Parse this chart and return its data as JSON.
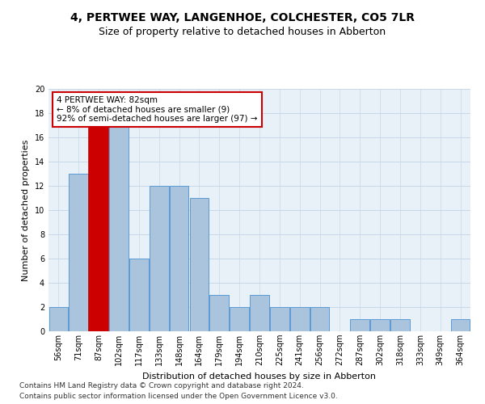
{
  "title1": "4, PERTWEE WAY, LANGENHOE, COLCHESTER, CO5 7LR",
  "title2": "Size of property relative to detached houses in Abberton",
  "xlabel": "Distribution of detached houses by size in Abberton",
  "ylabel": "Number of detached properties",
  "bar_labels": [
    "56sqm",
    "71sqm",
    "87sqm",
    "102sqm",
    "117sqm",
    "133sqm",
    "148sqm",
    "164sqm",
    "179sqm",
    "194sqm",
    "210sqm",
    "225sqm",
    "241sqm",
    "256sqm",
    "272sqm",
    "287sqm",
    "302sqm",
    "318sqm",
    "333sqm",
    "349sqm",
    "364sqm"
  ],
  "bar_values": [
    2,
    13,
    17,
    17,
    6,
    12,
    12,
    11,
    3,
    2,
    3,
    2,
    2,
    2,
    0,
    1,
    1,
    1,
    0,
    0,
    1
  ],
  "bar_color": "#aac4de",
  "bar_edge_color": "#5b9bd5",
  "highlight_index": 2,
  "highlight_color": "#cc0000",
  "highlight_edge_color": "#cc0000",
  "annotation_text": "4 PERTWEE WAY: 82sqm\n← 8% of detached houses are smaller (9)\n92% of semi-detached houses are larger (97) →",
  "annotation_box_color": "#ffffff",
  "annotation_box_edge": "#cc0000",
  "ylim": [
    0,
    20
  ],
  "yticks": [
    0,
    2,
    4,
    6,
    8,
    10,
    12,
    14,
    16,
    18,
    20
  ],
  "footer1": "Contains HM Land Registry data © Crown copyright and database right 2024.",
  "footer2": "Contains public sector information licensed under the Open Government Licence v3.0.",
  "bg_color": "#ffffff",
  "grid_color": "#c8d8e8",
  "title1_fontsize": 10,
  "title2_fontsize": 9,
  "axis_label_fontsize": 8,
  "tick_fontsize": 7,
  "annotation_fontsize": 7.5,
  "footer_fontsize": 6.5
}
